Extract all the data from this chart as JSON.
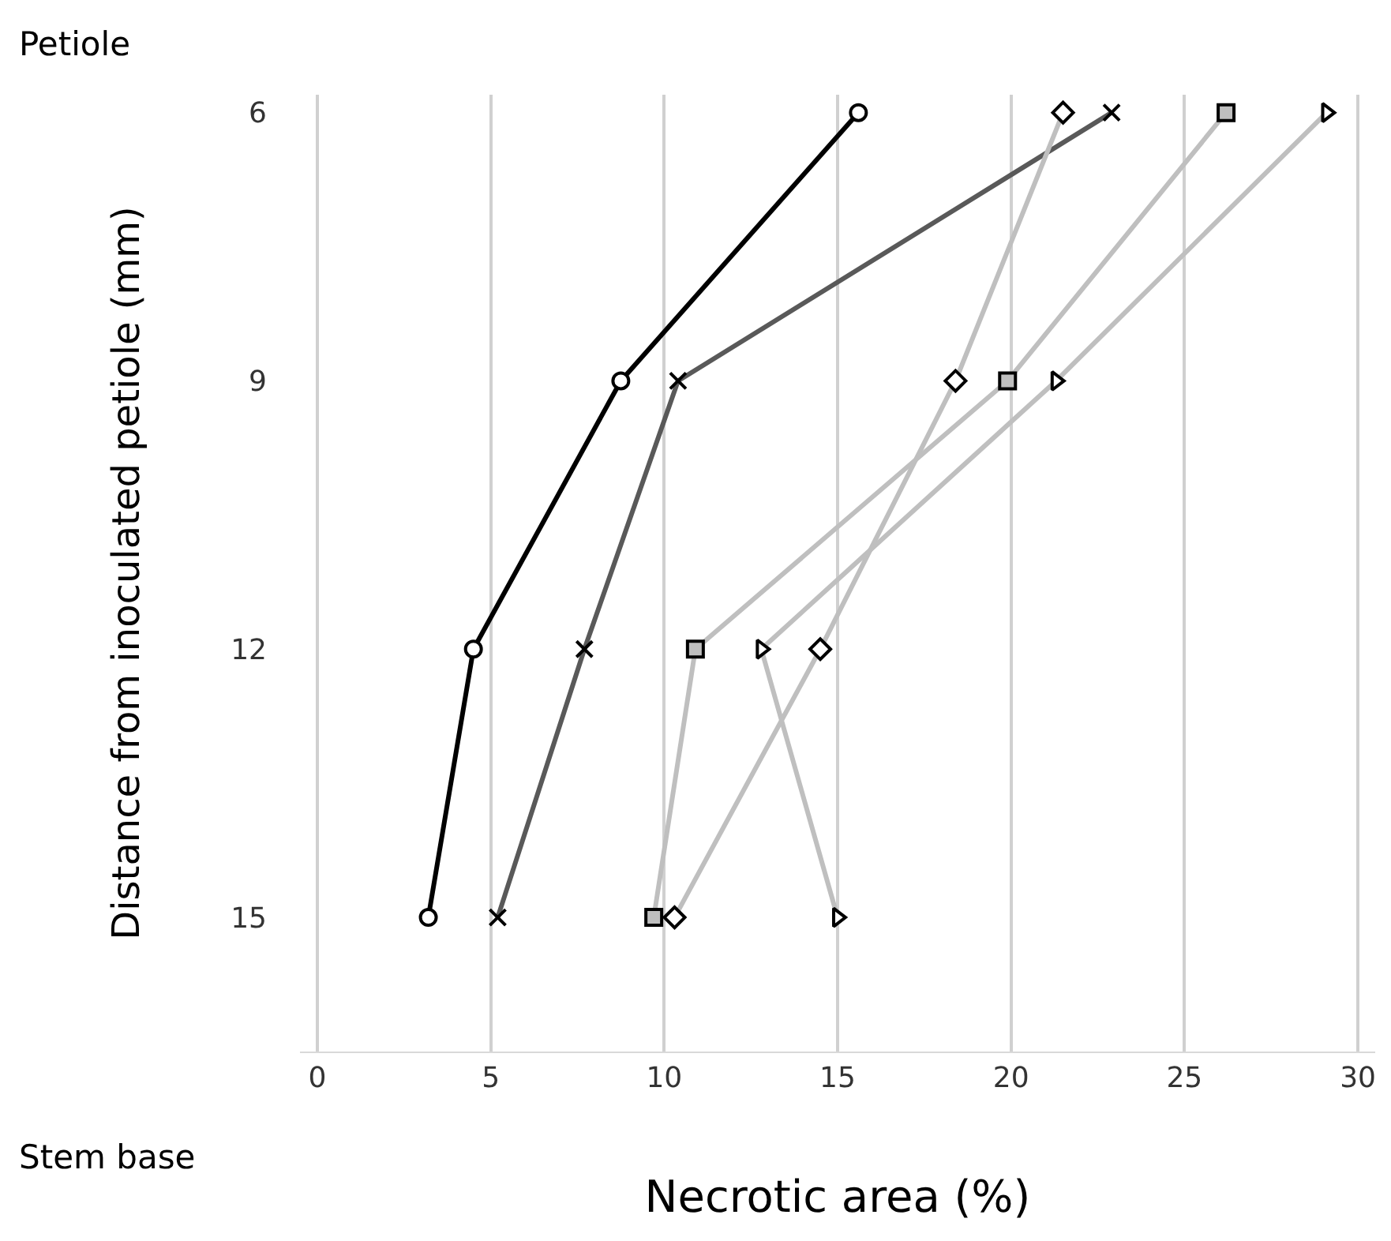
{
  "chart_data": {
    "type": "line",
    "xlabel": "Necrotic area (%)",
    "ylabel": "Distance from inoculated petiole (mm)",
    "annotations": [
      "Petiole",
      "Stem base"
    ],
    "xlim": [
      -0.5,
      30.5
    ],
    "xticks": [
      0,
      5,
      10,
      15,
      20,
      25,
      30
    ],
    "ylim": [
      16.5,
      5.8
    ],
    "yticks": [
      6,
      9,
      12,
      15
    ],
    "grid": "x",
    "series": [
      {
        "color": "#000000",
        "marker": "circle",
        "x": [
          15.6,
          8.75,
          4.5,
          3.2
        ],
        "values": [
          6,
          9,
          12,
          15
        ]
      },
      {
        "color": "#595959",
        "marker": "cross",
        "x": [
          22.9,
          10.4,
          7.7,
          5.2
        ],
        "values": [
          6,
          9,
          12,
          15
        ]
      },
      {
        "color": "#bfbfbf",
        "marker": "diamond",
        "x": [
          21.5,
          18.4,
          14.5,
          10.3
        ],
        "values": [
          6,
          9,
          12,
          15
        ]
      },
      {
        "color": "#bfbfbf",
        "marker": "square",
        "x": [
          26.2,
          19.9,
          10.9,
          9.7
        ],
        "values": [
          6,
          9,
          12,
          15
        ]
      },
      {
        "color": "#bfbfbf",
        "marker": "triangle",
        "x": [
          29.1,
          21.3,
          12.8,
          15.0
        ],
        "values": [
          6,
          9,
          12,
          15
        ]
      }
    ]
  }
}
